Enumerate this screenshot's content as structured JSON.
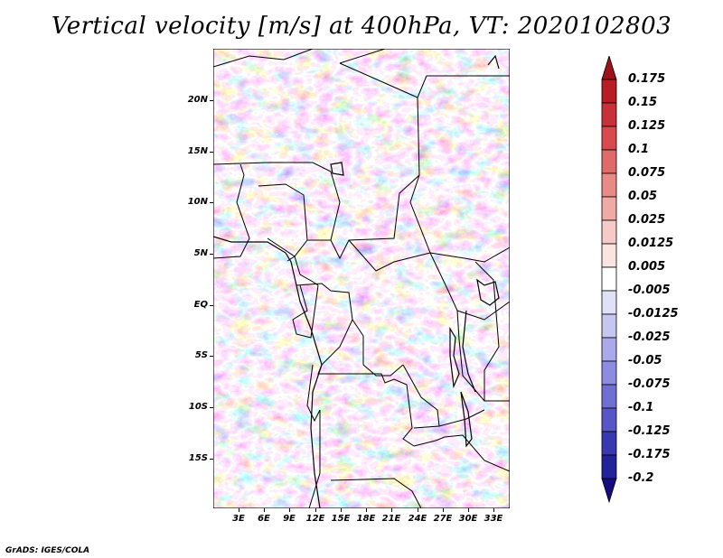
{
  "title": "Vertical velocity [m/s] at 400hPa, VT: 2020102803",
  "latitude_labels": [
    "20N",
    "15N",
    "10N",
    "5N",
    "EQ",
    "5S",
    "10S",
    "15S"
  ],
  "longitude_labels": [
    "3E",
    "6E",
    "9E",
    "12E",
    "15E",
    "18E",
    "21E",
    "24E",
    "27E",
    "30E",
    "33E"
  ],
  "colorbar": {
    "levels": [
      "0.175",
      "0.15",
      "0.125",
      "0.1",
      "0.075",
      "0.05",
      "0.025",
      "0.0125",
      "0.005",
      "-0.005",
      "-0.0125",
      "-0.025",
      "-0.05",
      "-0.075",
      "-0.1",
      "-0.125",
      "-0.175",
      "-0.2"
    ],
    "colors": [
      "#a01018",
      "#b81c24",
      "#c8303a",
      "#d84a4e",
      "#e06a6a",
      "#e88a86",
      "#f0aaa6",
      "#f6cac6",
      "#fae4e0",
      "#ffffff",
      "#e0e0f6",
      "#c6c6f0",
      "#aaaaea",
      "#8c8ce0",
      "#7070d4",
      "#5656c6",
      "#3838b0",
      "#22229a",
      "#160c80"
    ]
  },
  "credit": "GrADS: IGES/COLA"
}
